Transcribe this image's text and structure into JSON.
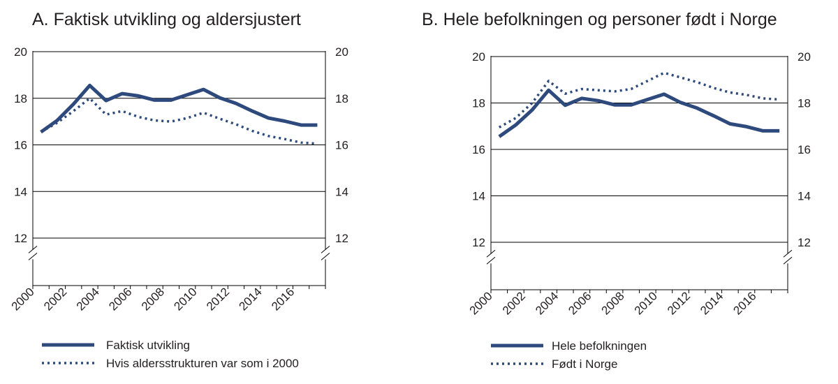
{
  "colors": {
    "series": "#2e4a7d",
    "grid": "#000000",
    "text": "#231f20"
  },
  "chart_data": [
    {
      "type": "line",
      "title": "A. Faktisk utvikling og aldersjustert",
      "xlabel": "",
      "ylabel": "",
      "x": [
        2000,
        2001,
        2002,
        2003,
        2004,
        2005,
        2006,
        2007,
        2008,
        2009,
        2010,
        2011,
        2012,
        2013,
        2014,
        2015,
        2016,
        2017
      ],
      "x_tick_labels": [
        "2000",
        "2002",
        "2004",
        "2006",
        "2008",
        "2010",
        "2012",
        "2014",
        "2016"
      ],
      "y_tick_labels": [
        "20",
        "18",
        "16",
        "14",
        "12"
      ],
      "ylim": [
        11,
        20
      ],
      "y_axis_break": true,
      "grid": true,
      "legend": "below",
      "series": [
        {
          "name": "Faktisk utvikling",
          "style": "solid",
          "values": [
            16.55,
            17.05,
            17.75,
            18.55,
            17.9,
            18.2,
            18.1,
            17.92,
            17.92,
            18.15,
            18.38,
            18.02,
            17.78,
            17.45,
            17.15,
            17.02,
            16.85,
            16.85
          ]
        },
        {
          "name": "Hvis aldersstrukturen var som i 2000",
          "style": "dotted",
          "values": [
            16.55,
            16.95,
            17.45,
            18.0,
            17.3,
            17.45,
            17.2,
            17.05,
            17.0,
            17.15,
            17.38,
            17.12,
            16.88,
            16.6,
            16.38,
            16.25,
            16.1,
            16.05
          ]
        }
      ]
    },
    {
      "type": "line",
      "title": "B. Hele befolkningen og personer født i Norge",
      "xlabel": "",
      "ylabel": "",
      "x": [
        2000,
        2001,
        2002,
        2003,
        2004,
        2005,
        2006,
        2007,
        2008,
        2009,
        2010,
        2011,
        2012,
        2013,
        2014,
        2015,
        2016,
        2017
      ],
      "x_tick_labels": [
        "2000",
        "2002",
        "2004",
        "2006",
        "2008",
        "2010",
        "2012",
        "2014",
        "2016"
      ],
      "y_tick_labels": [
        "20",
        "18",
        "16",
        "14",
        "12"
      ],
      "ylim": [
        11,
        20
      ],
      "y_axis_break": true,
      "grid": true,
      "legend": "below",
      "series": [
        {
          "name": "Hele befolkningen",
          "style": "solid",
          "values": [
            16.55,
            17.05,
            17.7,
            18.55,
            17.9,
            18.2,
            18.1,
            17.92,
            17.92,
            18.15,
            18.38,
            18.02,
            17.78,
            17.45,
            17.1,
            16.98,
            16.8,
            16.8
          ]
        },
        {
          "name": "Født i Norge",
          "style": "dotted",
          "values": [
            16.95,
            17.35,
            18.0,
            18.95,
            18.4,
            18.6,
            18.55,
            18.5,
            18.6,
            18.95,
            19.3,
            19.1,
            18.9,
            18.65,
            18.45,
            18.35,
            18.2,
            18.15
          ]
        }
      ]
    }
  ]
}
